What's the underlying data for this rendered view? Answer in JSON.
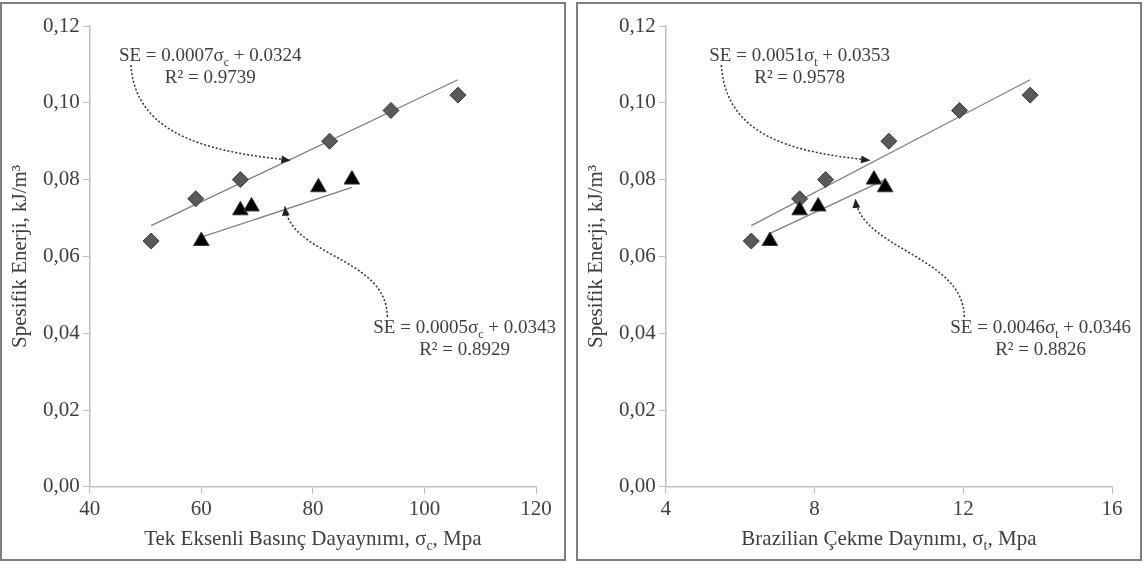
{
  "chart_data": [
    {
      "type": "scatter",
      "xlabel": "Tek Eksenli Basınç Dayaynımı, σ$_{c}$, Mpa",
      "ylabel": "Spesifik Enerji, kJ/m³",
      "xlim": [
        40,
        120
      ],
      "xticks": [
        40,
        60,
        80,
        100,
        120
      ],
      "ylim": [
        0,
        0.12
      ],
      "yticks": [
        {
          "value": 0,
          "label": "0,00"
        },
        {
          "value": 0.02,
          "label": "0,02"
        },
        {
          "value": 0.04,
          "label": "0,04"
        },
        {
          "value": 0.06,
          "label": "0,06"
        },
        {
          "value": 0.08,
          "label": "0,08"
        },
        {
          "value": 0.1,
          "label": "0,10"
        },
        {
          "value": 0.12,
          "label": "0,12"
        }
      ],
      "grid": false,
      "legend": false,
      "series": [
        {
          "type": "scatter",
          "marker": "triangle",
          "color": "#000000",
          "x": [
            60,
            67,
            69,
            81,
            87
          ],
          "values": [
            0.064,
            0.072,
            0.073,
            0.078,
            0.08
          ]
        },
        {
          "type": "scatter",
          "marker": "diamond",
          "color": "#595959",
          "x": [
            51,
            59,
            67,
            83,
            94,
            106
          ],
          "values": [
            0.064,
            0.075,
            0.08,
            0.09,
            0.098,
            0.102
          ]
        },
        {
          "type": "line",
          "marker": "none",
          "color": "#808080",
          "x": [
            60,
            87
          ],
          "values": [
            0.065,
            0.078
          ]
        },
        {
          "type": "line",
          "marker": "none",
          "color": "#808080",
          "x": [
            51,
            106
          ],
          "values": [
            0.068,
            0.106
          ]
        }
      ],
      "annotations": [
        {
          "text": "SE = 0.0007σ$_{c}$ + 0.0324\nR² = 0.9739",
          "x": 76,
          "y": 0.085
        },
        {
          "text": "SE = 0.0005σ$_{c}$ + 0.0343\nR² = 0.8929",
          "x": 75,
          "y": 0.073
        }
      ]
    },
    {
      "type": "scatter",
      "xlabel": "Brazilian Çekme Daynımı, σ$_{t}$, Mpa",
      "ylabel": "Spesifik Enerji, kJ/m³",
      "xlim": [
        4,
        16
      ],
      "xticks": [
        4,
        8,
        12,
        16
      ],
      "ylim": [
        0,
        0.12
      ],
      "yticks": [
        {
          "value": 0,
          "label": "0,00"
        },
        {
          "value": 0.02,
          "label": "0,02"
        },
        {
          "value": 0.04,
          "label": "0,04"
        },
        {
          "value": 0.06,
          "label": "0,06"
        },
        {
          "value": 0.08,
          "label": "0,08"
        },
        {
          "value": 0.1,
          "label": "0,10"
        },
        {
          "value": 0.12,
          "label": "0,12"
        }
      ],
      "grid": false,
      "legend": false,
      "series": [
        {
          "type": "scatter",
          "marker": "triangle",
          "color": "#000000",
          "x": [
            6.8,
            7.6,
            8.1,
            9.6,
            9.9
          ],
          "values": [
            0.064,
            0.072,
            0.073,
            0.08,
            0.078
          ]
        },
        {
          "type": "scatter",
          "marker": "diamond",
          "color": "#595959",
          "x": [
            6.3,
            7.6,
            8.3,
            10.0,
            11.9,
            13.8
          ],
          "values": [
            0.064,
            0.075,
            0.08,
            0.09,
            0.098,
            0.102
          ]
        },
        {
          "type": "line",
          "marker": "none",
          "color": "#808080",
          "x": [
            6.8,
            9.9
          ],
          "values": [
            0.066,
            0.08
          ]
        },
        {
          "type": "line",
          "marker": "none",
          "color": "#808080",
          "x": [
            6.3,
            13.8
          ],
          "values": [
            0.068,
            0.106
          ]
        }
      ],
      "annotations": [
        {
          "text": "SE = 0.0051σ$_{t}$ + 0.0353\nR² = 0.9578",
          "x": 9.5,
          "y": 0.085
        },
        {
          "text": "SE = 0.0046σ$_{t}$ + 0.0346\nR² = 0.8826",
          "x": 9.1,
          "y": 0.075
        }
      ]
    }
  ]
}
